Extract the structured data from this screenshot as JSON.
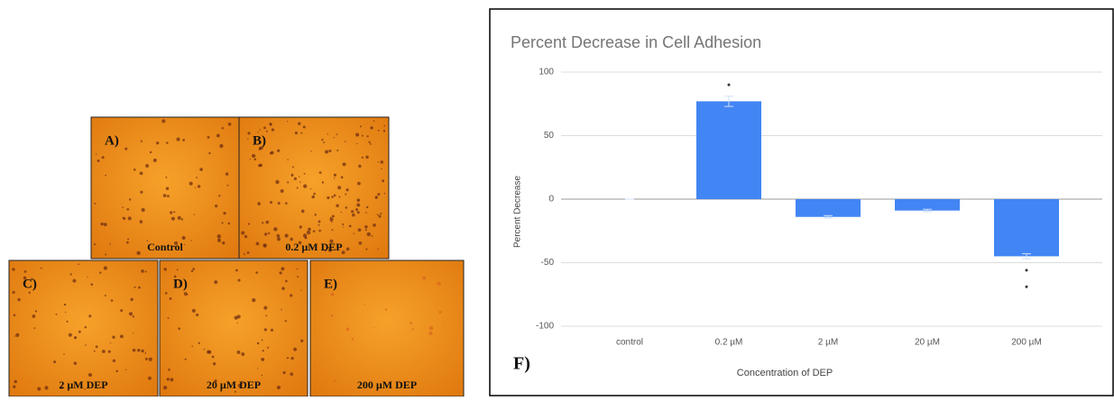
{
  "panels": [
    {
      "letter": "A)",
      "caption": "Control"
    },
    {
      "letter": "B)",
      "caption": "0.2 µM DEP"
    },
    {
      "letter": "C)",
      "caption": "2 µM DEP"
    },
    {
      "letter": "D)",
      "caption": "20 µM DEP"
    },
    {
      "letter": "E)",
      "caption": "200 µM DEP"
    }
  ],
  "chart_data": {
    "type": "bar",
    "title": "Percent Decrease in Cell Adhesion",
    "panel_label": "F)",
    "x_label": "Concentration of DEP",
    "y_label": "Percent Decrease",
    "categories": [
      "control",
      "0.2 µM",
      "2 µM",
      "20 µM",
      "200 µM"
    ],
    "values": [
      0,
      77,
      -14,
      -9,
      -45
    ],
    "errors": [
      0,
      4,
      1,
      1,
      2
    ],
    "outliers": [
      [],
      [
        90
      ],
      [],
      [],
      [
        -56,
        -69
      ]
    ],
    "color": "#4285f4",
    "ylim": [
      -105,
      100
    ],
    "yticks": [
      -100,
      -50,
      0,
      50,
      100
    ],
    "grid": true
  }
}
